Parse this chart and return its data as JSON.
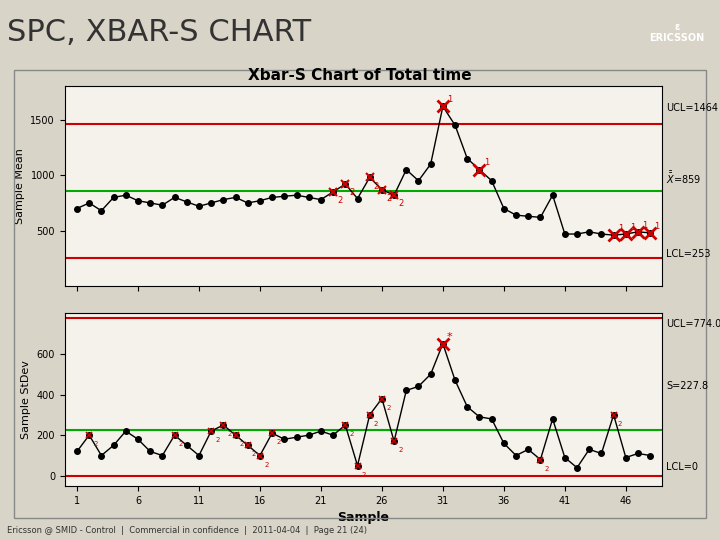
{
  "title_main": "SPC, XBAR-S CHART",
  "chart_title": "Xbar-S Chart of Total time",
  "xlabel": "Sample",
  "ylabel_top": "Sample Mean",
  "ylabel_bot": "Sample StDev",
  "footer": "Ericsson @ SMID - Control  |  Commercial in confidence  |  2011-04-04  |  Page 21 (24)",
  "ucl_mean": 1464,
  "cl_mean": 859,
  "lcl_mean": 253,
  "ucl_std": 774.0,
  "cl_std": 227.8,
  "lcl_std": 0,
  "bg_outer": "#d9d4c8",
  "bg_plot": "#f5f2eb",
  "bg_main": "#ffffff",
  "line_color": "#000000",
  "cl_color": "#00aa00",
  "ucl_lcl_color": "#cc0000",
  "out_color": "#cc0000",
  "x_ticks": [
    1,
    6,
    11,
    16,
    21,
    26,
    31,
    36,
    41,
    46
  ],
  "xbar_data": [
    700,
    750,
    680,
    800,
    820,
    770,
    750,
    730,
    800,
    760,
    720,
    750,
    780,
    800,
    750,
    770,
    800,
    810,
    820,
    800,
    780,
    850,
    920,
    790,
    980,
    870,
    820,
    1050,
    950,
    1100,
    1620,
    1450,
    1150,
    1050,
    950,
    700,
    640,
    630,
    620,
    820,
    470,
    470,
    490,
    470,
    460,
    470,
    490,
    480
  ],
  "s_data": [
    120,
    200,
    100,
    150,
    220,
    180,
    120,
    100,
    200,
    150,
    100,
    220,
    250,
    200,
    150,
    100,
    210,
    180,
    190,
    200,
    220,
    200,
    250,
    50,
    300,
    380,
    170,
    420,
    440,
    500,
    650,
    470,
    340,
    290,
    280,
    160,
    100,
    130,
    80,
    280,
    90,
    40,
    130,
    110,
    300,
    90,
    110,
    100
  ],
  "xbar_out_idx": [
    30,
    33,
    44,
    45,
    46,
    47
  ],
  "s_out_idx": [
    30
  ],
  "xbar_warn_idx": [
    21,
    22,
    24,
    25,
    26
  ],
  "s_warn_idx": [
    1,
    8,
    11,
    12,
    13,
    14,
    15,
    16,
    22,
    23,
    24,
    25,
    26,
    38,
    44
  ],
  "n_samples": 48
}
